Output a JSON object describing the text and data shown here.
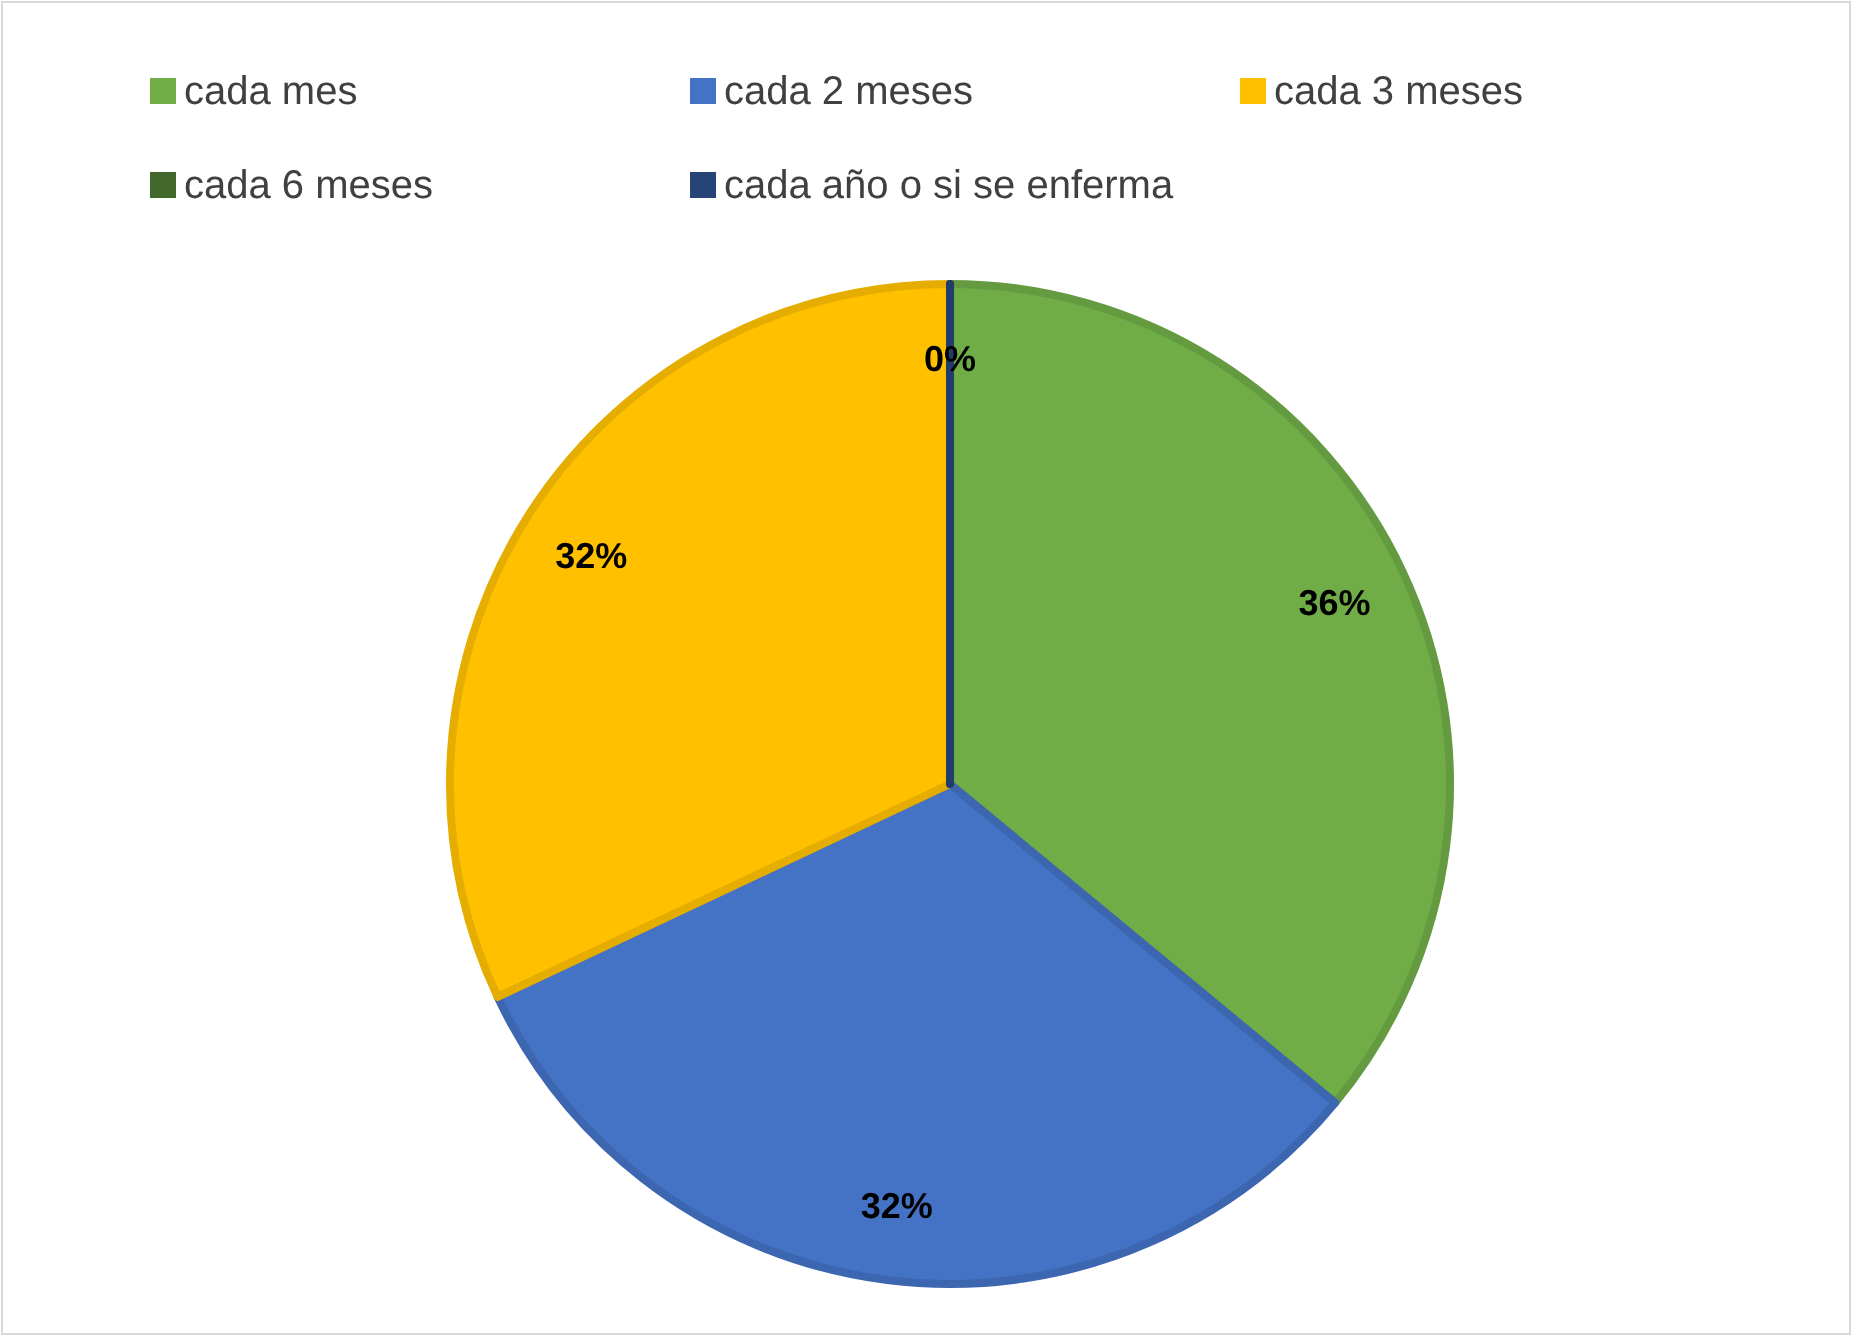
{
  "chart_data": {
    "type": "pie",
    "categories": [
      "cada mes",
      "cada 2 meses",
      "cada 3 meses",
      "cada 6 meses",
      "cada año o si se enferma"
    ],
    "values": [
      36,
      32,
      32,
      0,
      0
    ],
    "colors": [
      "#70ad47",
      "#4472c4",
      "#ffc000",
      "#43682b",
      "#264478"
    ],
    "value_labels": [
      "36%",
      "32%",
      "32%",
      "0%",
      null
    ],
    "legend": "top"
  }
}
